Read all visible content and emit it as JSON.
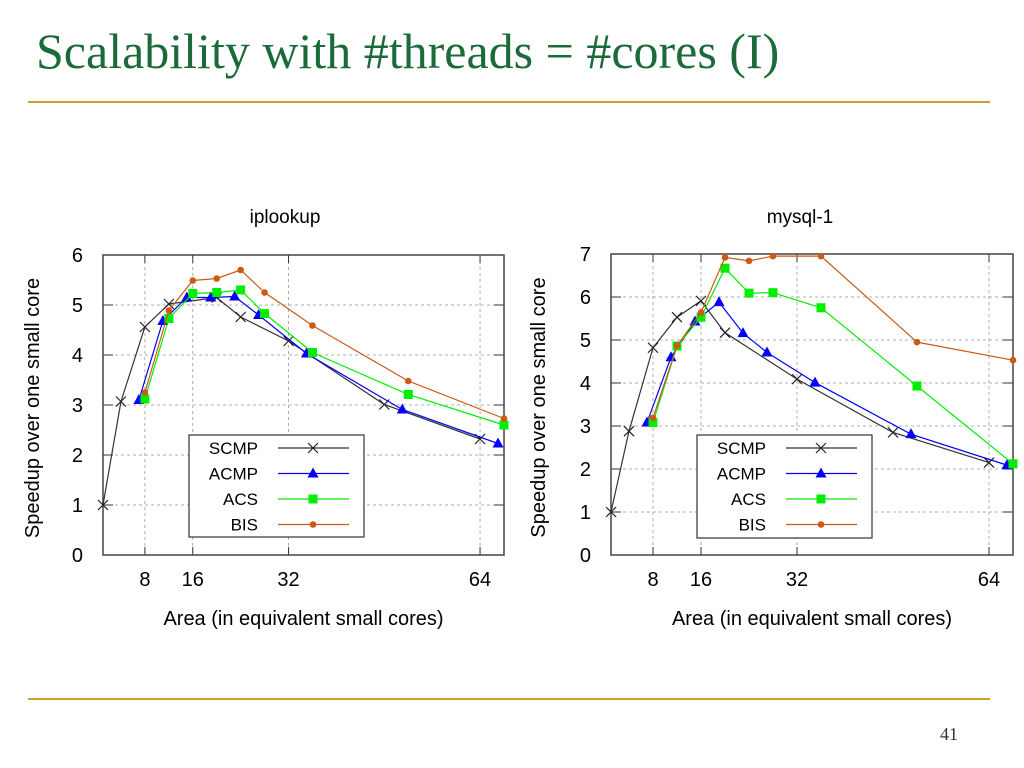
{
  "slide": {
    "title": "Scalability with #threads = #cores (I)",
    "page_number": "41",
    "title_color": "#1b6b3a",
    "rule_color": "#c9a227"
  },
  "chart_data": [
    {
      "type": "line",
      "title": "iplookup",
      "xlabel": "Area (in equivalent small cores)",
      "ylabel": "Speedup over one small core",
      "xlim": [
        1,
        68
      ],
      "ylim": [
        0,
        6
      ],
      "xticks": [
        8,
        16,
        32,
        64
      ],
      "yticks": [
        0,
        1,
        2,
        3,
        4,
        5,
        6
      ],
      "grid": true,
      "legend": "bottom-center",
      "series": [
        {
          "name": "SCMP",
          "color": "#000000",
          "marker": "x",
          "x": [
            1,
            4,
            8,
            12,
            20,
            24,
            32,
            48,
            64
          ],
          "y": [
            1.0,
            3.07,
            4.56,
            5.02,
            5.15,
            4.76,
            4.28,
            3.01,
            2.32
          ]
        },
        {
          "name": "ACMP",
          "color": "#0000ff",
          "marker": "triangle",
          "x": [
            7,
            11,
            15,
            19,
            23,
            27,
            35,
            51,
            67
          ],
          "y": [
            3.1,
            4.68,
            5.15,
            5.15,
            5.17,
            4.8,
            4.03,
            2.91,
            2.23
          ]
        },
        {
          "name": "ACS",
          "color": "#00ee00",
          "marker": "square",
          "x": [
            8,
            12,
            16,
            20,
            24,
            28,
            36,
            52,
            68
          ],
          "y": [
            3.12,
            4.73,
            5.23,
            5.25,
            5.3,
            4.83,
            4.05,
            3.21,
            2.6
          ]
        },
        {
          "name": "BIS",
          "color": "#cc5a14",
          "marker": "circle",
          "x": [
            8,
            12,
            16,
            20,
            24,
            28,
            36,
            52,
            68
          ],
          "y": [
            3.25,
            4.89,
            5.49,
            5.53,
            5.7,
            5.25,
            4.59,
            3.48,
            2.73
          ]
        }
      ]
    },
    {
      "type": "line",
      "title": "mysql-1",
      "xlabel": "Area (in equivalent small cores)",
      "ylabel": "Speedup over one small core",
      "xlim": [
        1,
        68
      ],
      "ylim": [
        0,
        7
      ],
      "xticks": [
        8,
        16,
        32,
        64
      ],
      "yticks": [
        0,
        1,
        2,
        3,
        4,
        5,
        6,
        7
      ],
      "grid": true,
      "legend": "bottom-center",
      "series": [
        {
          "name": "SCMP",
          "color": "#000000",
          "marker": "x",
          "x": [
            1,
            4,
            8,
            12,
            16,
            20,
            32,
            48,
            64
          ],
          "y": [
            1.0,
            2.88,
            4.82,
            5.53,
            5.91,
            5.17,
            4.09,
            2.85,
            2.15
          ]
        },
        {
          "name": "ACMP",
          "color": "#0000ff",
          "marker": "triangle",
          "x": [
            7,
            11,
            15,
            19,
            23,
            27,
            35,
            51,
            67
          ],
          "y": [
            3.08,
            4.6,
            5.43,
            5.88,
            5.16,
            4.71,
            4.01,
            2.81,
            2.09
          ]
        },
        {
          "name": "ACS",
          "color": "#00ee00",
          "marker": "square",
          "x": [
            8,
            12,
            16,
            20,
            24,
            28,
            36,
            52,
            68
          ],
          "y": [
            3.08,
            4.86,
            5.53,
            6.67,
            6.09,
            6.1,
            5.75,
            3.93,
            2.12
          ]
        },
        {
          "name": "BIS",
          "color": "#cc5a14",
          "marker": "circle",
          "x": [
            8,
            12,
            16,
            20,
            24,
            28,
            36,
            52,
            68
          ],
          "y": [
            3.19,
            4.87,
            5.64,
            6.92,
            6.84,
            6.95,
            6.95,
            4.95,
            4.53
          ]
        }
      ]
    }
  ]
}
